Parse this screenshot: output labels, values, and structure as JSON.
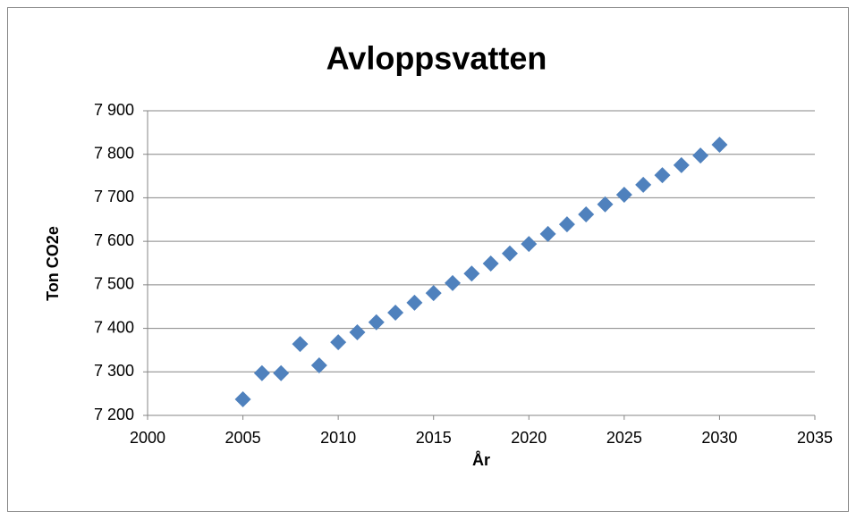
{
  "chart_data": {
    "type": "scatter",
    "title": "Avloppsvatten",
    "x_label": "År",
    "y_label": "Ton CO2e",
    "series": [
      {
        "color": "#4f81bd",
        "x": [
          2005,
          2006,
          2007,
          2008,
          2009,
          2010,
          2011,
          2012,
          2013,
          2014,
          2015,
          2016,
          2017,
          2018,
          2019,
          2020,
          2021,
          2022,
          2023,
          2024,
          2025,
          2026,
          2027,
          2028,
          2029,
          2030
        ],
        "values": [
          7237,
          7297,
          7297,
          7364,
          7315,
          7368,
          7391,
          7414,
          7436,
          7459,
          7481,
          7504,
          7526,
          7549,
          7572,
          7594,
          7617,
          7639,
          7662,
          7685,
          7707,
          7730,
          7752,
          7775,
          7797,
          7822
        ]
      }
    ],
    "xlim": [
      2000,
      2035
    ],
    "xticks": [
      2000,
      2005,
      2010,
      2015,
      2020,
      2025,
      2030,
      2035
    ],
    "ylim": [
      7200,
      7900
    ],
    "yticks": [
      {
        "value": 7200,
        "label": "7 200"
      },
      {
        "value": 7300,
        "label": "7 300"
      },
      {
        "value": 7400,
        "label": "7 400"
      },
      {
        "value": 7500,
        "label": "7 500"
      },
      {
        "value": 7600,
        "label": "7 600"
      },
      {
        "value": 7700,
        "label": "7 700"
      },
      {
        "value": 7800,
        "label": "7 800"
      },
      {
        "value": 7900,
        "label": "7 900"
      }
    ],
    "grid": true
  }
}
